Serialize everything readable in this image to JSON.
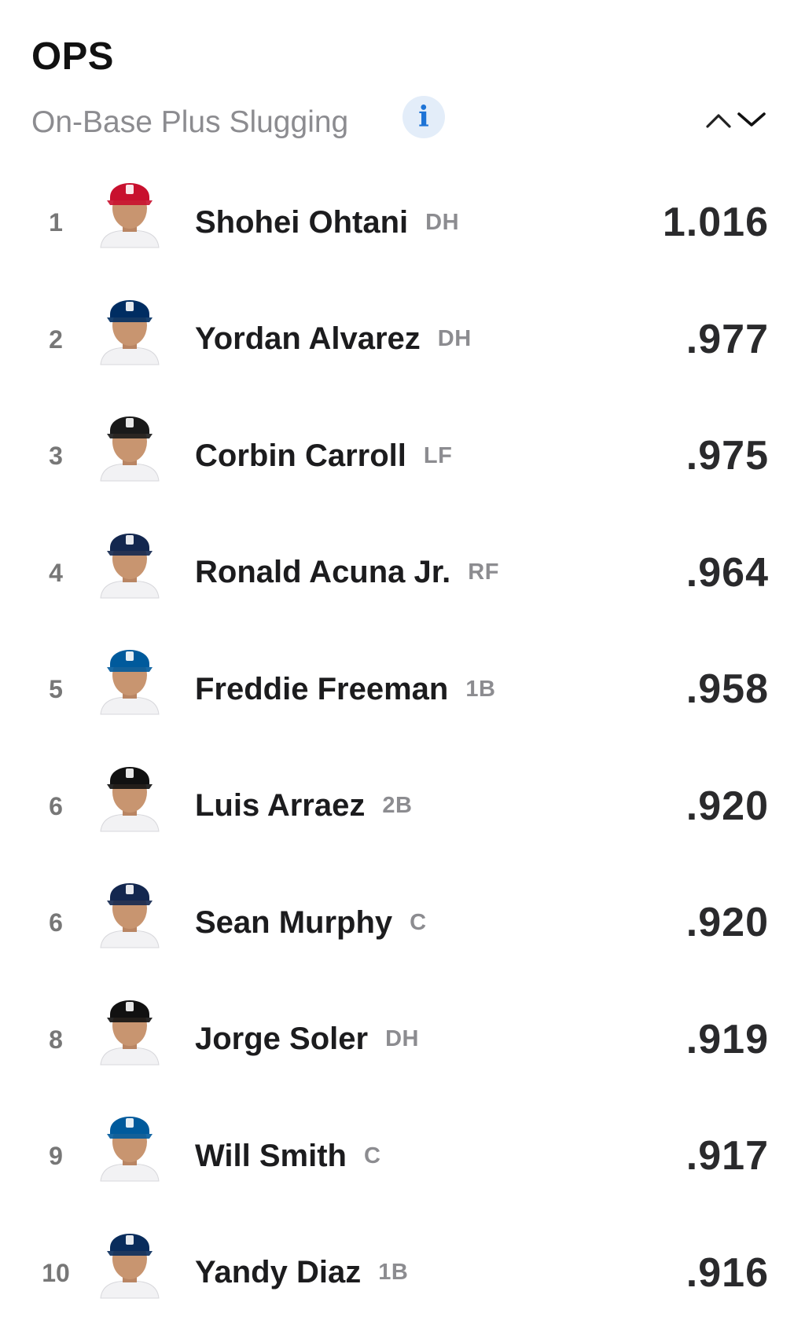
{
  "header": {
    "title": "OPS",
    "subtitle": "On-Base Plus Slugging",
    "info_icon": "info-icon",
    "info_glyph": "i",
    "sort_icon": "sort-up-down-chevron-icon"
  },
  "colors": {
    "accent_blue": "#1d73d6",
    "info_bg": "#e3edf9",
    "muted_text": "#8c8c90"
  },
  "players": [
    {
      "rank": "1",
      "name": "Shohei Ohtani",
      "position": "DH",
      "value": "1.016",
      "cap_color": "#c8102e",
      "team_icon": "angels-cap-icon"
    },
    {
      "rank": "2",
      "name": "Yordan Alvarez",
      "position": "DH",
      "value": ".977",
      "cap_color": "#002d62",
      "team_icon": "astros-cap-icon"
    },
    {
      "rank": "3",
      "name": "Corbin Carroll",
      "position": "LF",
      "value": ".975",
      "cap_color": "#1a1a1a",
      "team_icon": "diamondbacks-cap-icon"
    },
    {
      "rank": "4",
      "name": "Ronald Acuna Jr.",
      "position": "RF",
      "value": ".964",
      "cap_color": "#13274f",
      "team_icon": "braves-cap-icon"
    },
    {
      "rank": "5",
      "name": "Freddie Freeman",
      "position": "1B",
      "value": ".958",
      "cap_color": "#005a9c",
      "team_icon": "dodgers-cap-icon"
    },
    {
      "rank": "6",
      "name": "Luis Arraez",
      "position": "2B",
      "value": ".920",
      "cap_color": "#111111",
      "team_icon": "marlins-cap-icon"
    },
    {
      "rank": "6",
      "name": "Sean Murphy",
      "position": "C",
      "value": ".920",
      "cap_color": "#13274f",
      "team_icon": "braves-cap-icon"
    },
    {
      "rank": "8",
      "name": "Jorge Soler",
      "position": "DH",
      "value": ".919",
      "cap_color": "#111111",
      "team_icon": "marlins-cap-icon"
    },
    {
      "rank": "9",
      "name": "Will Smith",
      "position": "C",
      "value": ".917",
      "cap_color": "#005a9c",
      "team_icon": "dodgers-cap-icon"
    },
    {
      "rank": "10",
      "name": "Yandy Diaz",
      "position": "1B",
      "value": ".916",
      "cap_color": "#092c5c",
      "team_icon": "rays-cap-icon"
    }
  ]
}
